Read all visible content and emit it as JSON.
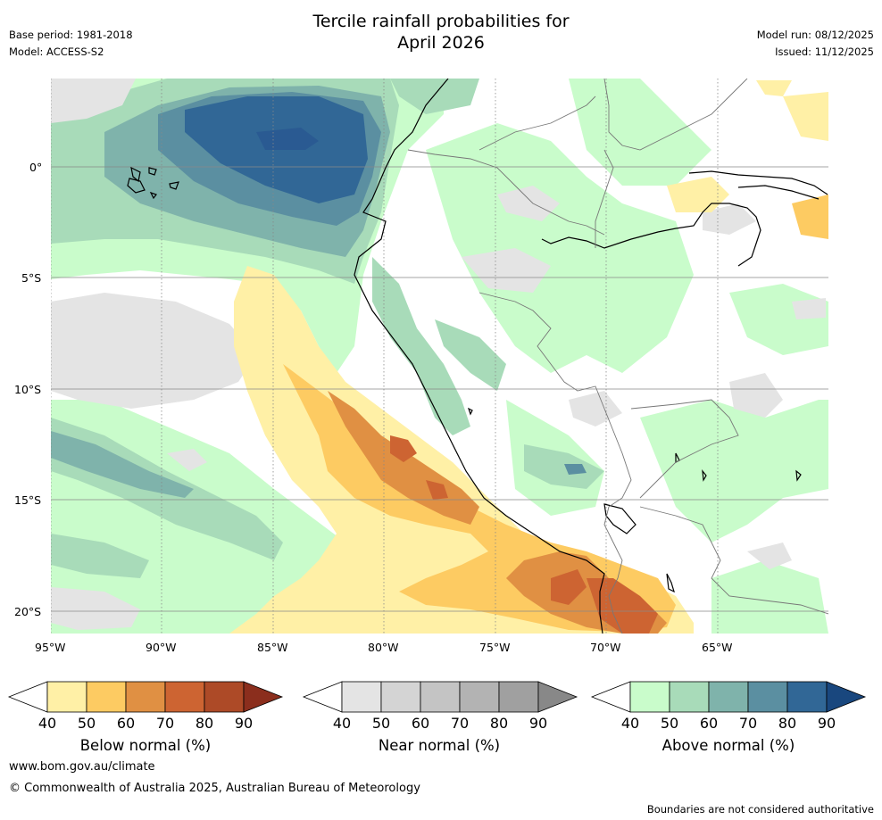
{
  "header": {
    "title_line1": "Tercile rainfall probabilities for",
    "title_line2": "April 2026",
    "base_period": "Base period: 1981-2018",
    "model": "Model: ACCESS-S2",
    "model_run": "Model run: 08/12/2025",
    "issued": "Issued: 11/12/2025"
  },
  "map": {
    "lat_labels": [
      "0°",
      "5°S",
      "10°S",
      "15°S",
      "20°S"
    ],
    "lon_labels": [
      "95°W",
      "90°W",
      "85°W",
      "80°W",
      "75°W",
      "70°W",
      "65°W"
    ]
  },
  "colorbars": [
    {
      "name": "below",
      "title": "Below normal (%)",
      "ticks": [
        "40",
        "50",
        "60",
        "70",
        "80",
        "90"
      ],
      "colors": [
        "#fff0a6",
        "#fdcb62",
        "#e09043",
        "#cd6432",
        "#ad4a27",
        "#8b2e1d"
      ]
    },
    {
      "name": "near",
      "title": "Near normal (%)",
      "ticks": [
        "40",
        "50",
        "60",
        "70",
        "80",
        "90"
      ],
      "colors": [
        "#e4e4e4",
        "#d4d4d4",
        "#c4c4c4",
        "#b3b3b3",
        "#a0a0a0",
        "#888888"
      ]
    },
    {
      "name": "above",
      "title": "Above normal (%)",
      "ticks": [
        "40",
        "50",
        "60",
        "70",
        "80",
        "90"
      ],
      "colors": [
        "#c9fccb",
        "#a8dbb9",
        "#7fb3ab",
        "#5b8fa1",
        "#316796",
        "#19477e"
      ]
    }
  ],
  "footer": {
    "website": "www.bom.gov.au/climate",
    "copyright": "© Commonwealth of Australia 2025, Australian Bureau of Meteorology",
    "disclaimer": "Boundaries are not considered authoritative"
  }
}
